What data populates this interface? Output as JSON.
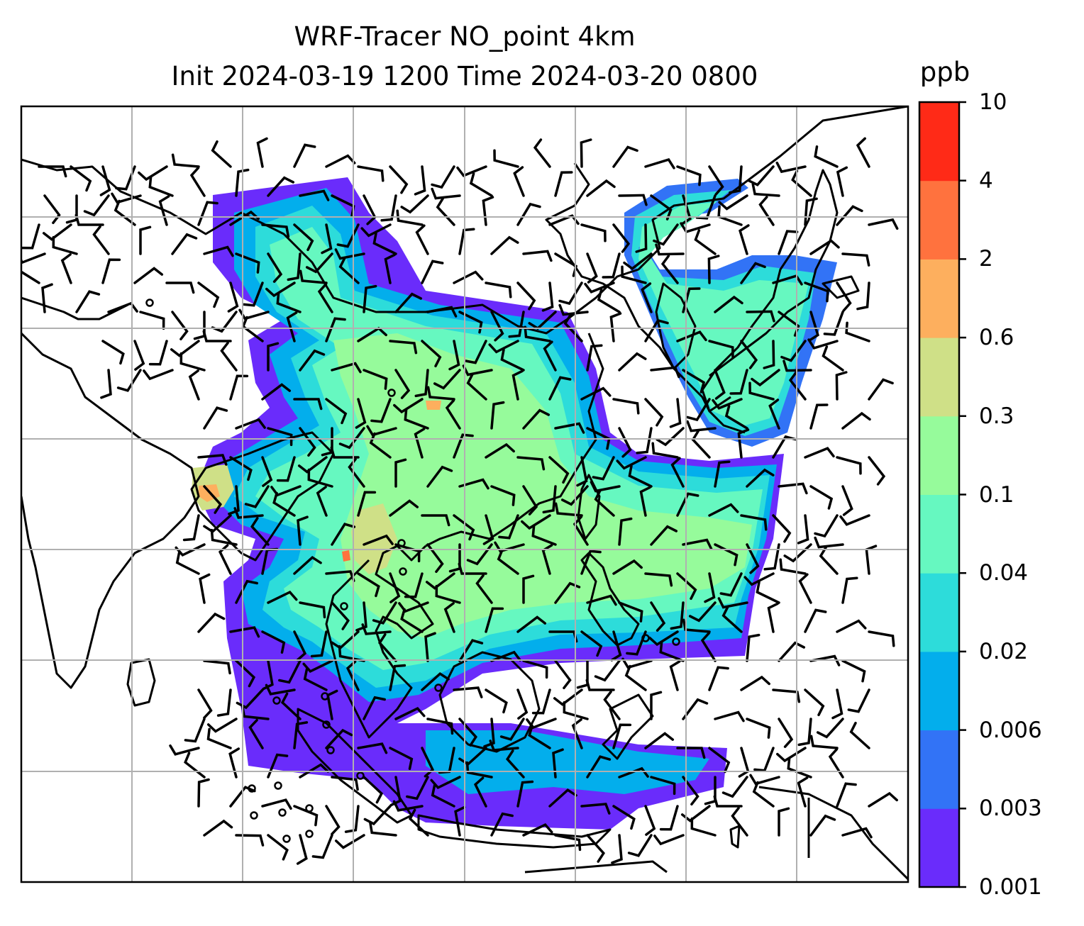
{
  "title": {
    "line1": "WRF-Tracer NO_point 4km",
    "line2": "Init 2024-03-19 1200 Time 2024-03-20 0800"
  },
  "colorbar": {
    "unit": "ppb",
    "ticks": [
      "0.001",
      "0.003",
      "0.006",
      "0.02",
      "0.04",
      "0.1",
      "0.3",
      "0.6",
      "2",
      "4",
      "10"
    ],
    "colors": [
      "#6a2cfb",
      "#3273f6",
      "#03aeec",
      "#2ddcda",
      "#66f8c0",
      "#96fb9b",
      "#cfe087",
      "#fdaf5e",
      "#ff723e",
      "#ff2a17"
    ]
  },
  "map": {
    "gridlines": true,
    "features": [
      "coastlines",
      "country-borders",
      "wind-barbs",
      "tracer-concentration-fill"
    ]
  }
}
